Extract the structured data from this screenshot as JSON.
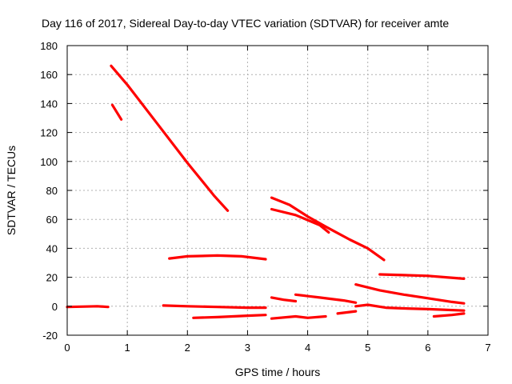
{
  "chart_data": {
    "type": "scatter",
    "title": "Day 116 of 2017, Sidereal Day-to-day VTEC variation (SDTVAR) for receiver amte",
    "xlabel": "GPS time / hours",
    "ylabel": "SDTVAR / TECUs",
    "xlim": [
      0,
      7
    ],
    "ylim": [
      -20,
      180
    ],
    "xticks": [
      0,
      1,
      2,
      3,
      4,
      5,
      6,
      7
    ],
    "yticks": [
      -20,
      0,
      20,
      40,
      60,
      80,
      100,
      120,
      140,
      160,
      180
    ],
    "grid": true,
    "marker": "plus",
    "color": "#ff0000",
    "series": [
      {
        "name": "seg-01",
        "points": [
          [
            0.0,
            -0.5
          ],
          [
            0.3,
            -0.2
          ],
          [
            0.5,
            0.0
          ],
          [
            0.68,
            -0.5
          ]
        ]
      },
      {
        "name": "seg-02",
        "points": [
          [
            0.73,
            166
          ],
          [
            1.0,
            153
          ],
          [
            1.5,
            126
          ],
          [
            2.0,
            99
          ],
          [
            2.45,
            76
          ],
          [
            2.67,
            66
          ]
        ]
      },
      {
        "name": "seg-03",
        "points": [
          [
            0.75,
            139
          ],
          [
            0.9,
            129
          ]
        ]
      },
      {
        "name": "seg-04",
        "points": [
          [
            1.7,
            33
          ],
          [
            2.0,
            34.5
          ],
          [
            2.5,
            35
          ],
          [
            2.9,
            34.5
          ],
          [
            3.3,
            32.5
          ]
        ]
      },
      {
        "name": "seg-05",
        "points": [
          [
            1.6,
            0.5
          ],
          [
            2.0,
            0.0
          ],
          [
            2.5,
            -0.5
          ],
          [
            3.0,
            -1.0
          ],
          [
            3.3,
            -1.0
          ]
        ]
      },
      {
        "name": "seg-06",
        "points": [
          [
            2.1,
            -8
          ],
          [
            2.5,
            -7.5
          ],
          [
            3.0,
            -6.5
          ],
          [
            3.3,
            -6.0
          ]
        ]
      },
      {
        "name": "seg-07",
        "points": [
          [
            3.4,
            75
          ],
          [
            3.7,
            70
          ],
          [
            4.0,
            62
          ],
          [
            4.3,
            55
          ],
          [
            4.7,
            46
          ],
          [
            5.0,
            40
          ],
          [
            5.27,
            32
          ]
        ]
      },
      {
        "name": "seg-08",
        "points": [
          [
            3.4,
            67
          ],
          [
            3.8,
            63
          ],
          [
            4.2,
            56
          ],
          [
            4.35,
            51
          ]
        ]
      },
      {
        "name": "seg-09",
        "points": [
          [
            3.4,
            6
          ],
          [
            3.6,
            4.5
          ],
          [
            3.8,
            3.5
          ]
        ]
      },
      {
        "name": "seg-10",
        "points": [
          [
            3.4,
            -8.5
          ],
          [
            3.8,
            -7.0
          ],
          [
            4.0,
            -8.0
          ],
          [
            4.3,
            -7.0
          ]
        ]
      },
      {
        "name": "seg-11",
        "points": [
          [
            3.8,
            8
          ],
          [
            4.2,
            6
          ],
          [
            4.6,
            4
          ],
          [
            4.8,
            2.5
          ]
        ]
      },
      {
        "name": "seg-12",
        "points": [
          [
            4.5,
            -5
          ],
          [
            4.8,
            -3.5
          ]
        ]
      },
      {
        "name": "seg-13",
        "points": [
          [
            4.8,
            15
          ],
          [
            5.2,
            11
          ],
          [
            5.6,
            8
          ],
          [
            6.0,
            5.5
          ],
          [
            6.4,
            3
          ],
          [
            6.6,
            2
          ]
        ]
      },
      {
        "name": "seg-14",
        "points": [
          [
            4.8,
            0
          ],
          [
            5.0,
            1
          ],
          [
            5.3,
            -1
          ],
          [
            5.6,
            -1.5
          ],
          [
            6.0,
            -2
          ],
          [
            6.6,
            -3
          ]
        ]
      },
      {
        "name": "seg-15",
        "points": [
          [
            5.2,
            22
          ],
          [
            5.6,
            21.5
          ],
          [
            6.0,
            21
          ],
          [
            6.3,
            20
          ],
          [
            6.6,
            19
          ]
        ]
      },
      {
        "name": "seg-16",
        "points": [
          [
            6.1,
            -7
          ],
          [
            6.4,
            -6
          ],
          [
            6.6,
            -5
          ]
        ]
      }
    ]
  }
}
